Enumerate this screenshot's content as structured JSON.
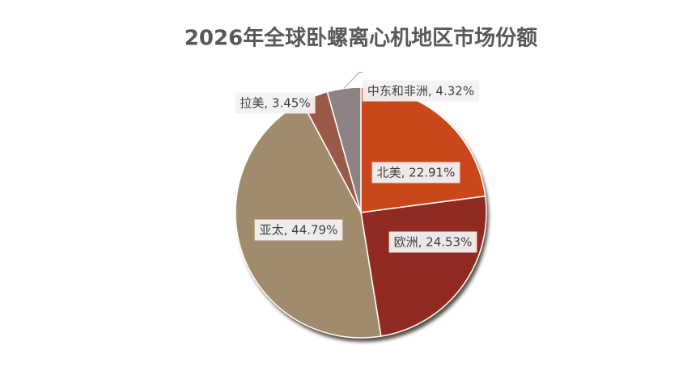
{
  "chart_data": {
    "type": "pie",
    "title": "2026年全球卧螺离心机地区市场份额",
    "values": [
      22.91,
      24.53,
      44.79,
      3.45,
      4.32
    ],
    "value_labels": [
      "北美, 22.91%",
      "欧洲, 24.53%",
      "亚太, 44.79%",
      "拉美, 3.45%",
      "中东和非洲, 4.32%"
    ],
    "colors": [
      "#c9471b",
      "#912b21",
      "#a08c6c",
      "#9b5a48",
      "#8e8286"
    ]
  }
}
